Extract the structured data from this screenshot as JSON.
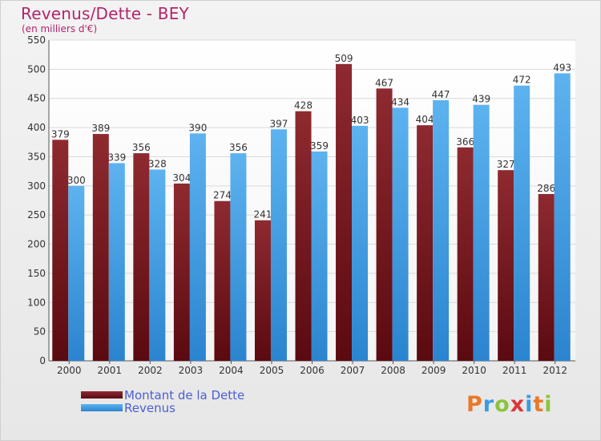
{
  "chart_data": {
    "type": "bar",
    "title": "Revenus/Dette - BEY",
    "subtitle": "(en milliers d'€)",
    "categories": [
      "2000",
      "2001",
      "2002",
      "2003",
      "2004",
      "2005",
      "2006",
      "2007",
      "2008",
      "2009",
      "2010",
      "2011",
      "2012"
    ],
    "series": [
      {
        "name": "Montant de la Dette",
        "color": "#7a1a1f",
        "values": [
          379,
          389,
          356,
          304,
          274,
          241,
          428,
          509,
          467,
          404,
          366,
          327,
          286
        ]
      },
      {
        "name": "Revenus",
        "color": "#3a9be3",
        "values": [
          300,
          339,
          328,
          390,
          356,
          397,
          359,
          403,
          434,
          447,
          439,
          472,
          493
        ]
      }
    ],
    "yticks": [
      "0",
      "50",
      "100",
      "150",
      "200",
      "250",
      "300",
      "350",
      "400",
      "450",
      "500",
      "550"
    ],
    "ylim": [
      0,
      550
    ],
    "grid": true,
    "legend_position": "bottom-left"
  },
  "logo": {
    "text": "Proxiti",
    "colors": [
      "#e8792a",
      "#3a9be3",
      "#8cc43f",
      "#d9383a",
      "#3a9be3",
      "#e8792a",
      "#8cc43f"
    ]
  }
}
